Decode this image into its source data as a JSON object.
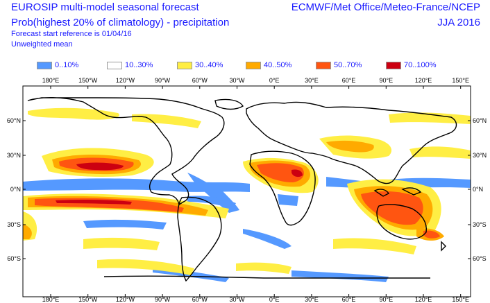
{
  "header": {
    "title_line1": "EUROSIP multi-model seasonal forecast",
    "title_line2": "Prob(highest 20% of climatology) - precipitation",
    "reference": "Forecast start reference is 01/04/16",
    "mean_type": "Unweighted mean",
    "centres": "ECMWF/Met Office/Meteo-France/NCEP",
    "season": "JJA 2016"
  },
  "legend": [
    {
      "label": "0..10%",
      "color": "#5599ff"
    },
    {
      "label": "10..30%",
      "color": "#ffffff"
    },
    {
      "label": "30..40%",
      "color": "#ffee44"
    },
    {
      "label": "40..50%",
      "color": "#ffaa00"
    },
    {
      "label": "50..70%",
      "color": "#ff5511"
    },
    {
      "label": "70..100%",
      "color": "#cc0011"
    }
  ],
  "map": {
    "lon_labels": [
      "180°E",
      "150°W",
      "120°W",
      "90°W",
      "60°W",
      "30°W",
      "0°E",
      "30°E",
      "60°E",
      "90°E",
      "120°E",
      "150°E"
    ],
    "lat_labels_left": [
      "60°N",
      "30°N",
      "0°N",
      "30°S",
      "60°S"
    ],
    "lat_labels_right": [
      "60°N",
      "30°N",
      "0°N",
      "30°S",
      "60°S"
    ]
  }
}
